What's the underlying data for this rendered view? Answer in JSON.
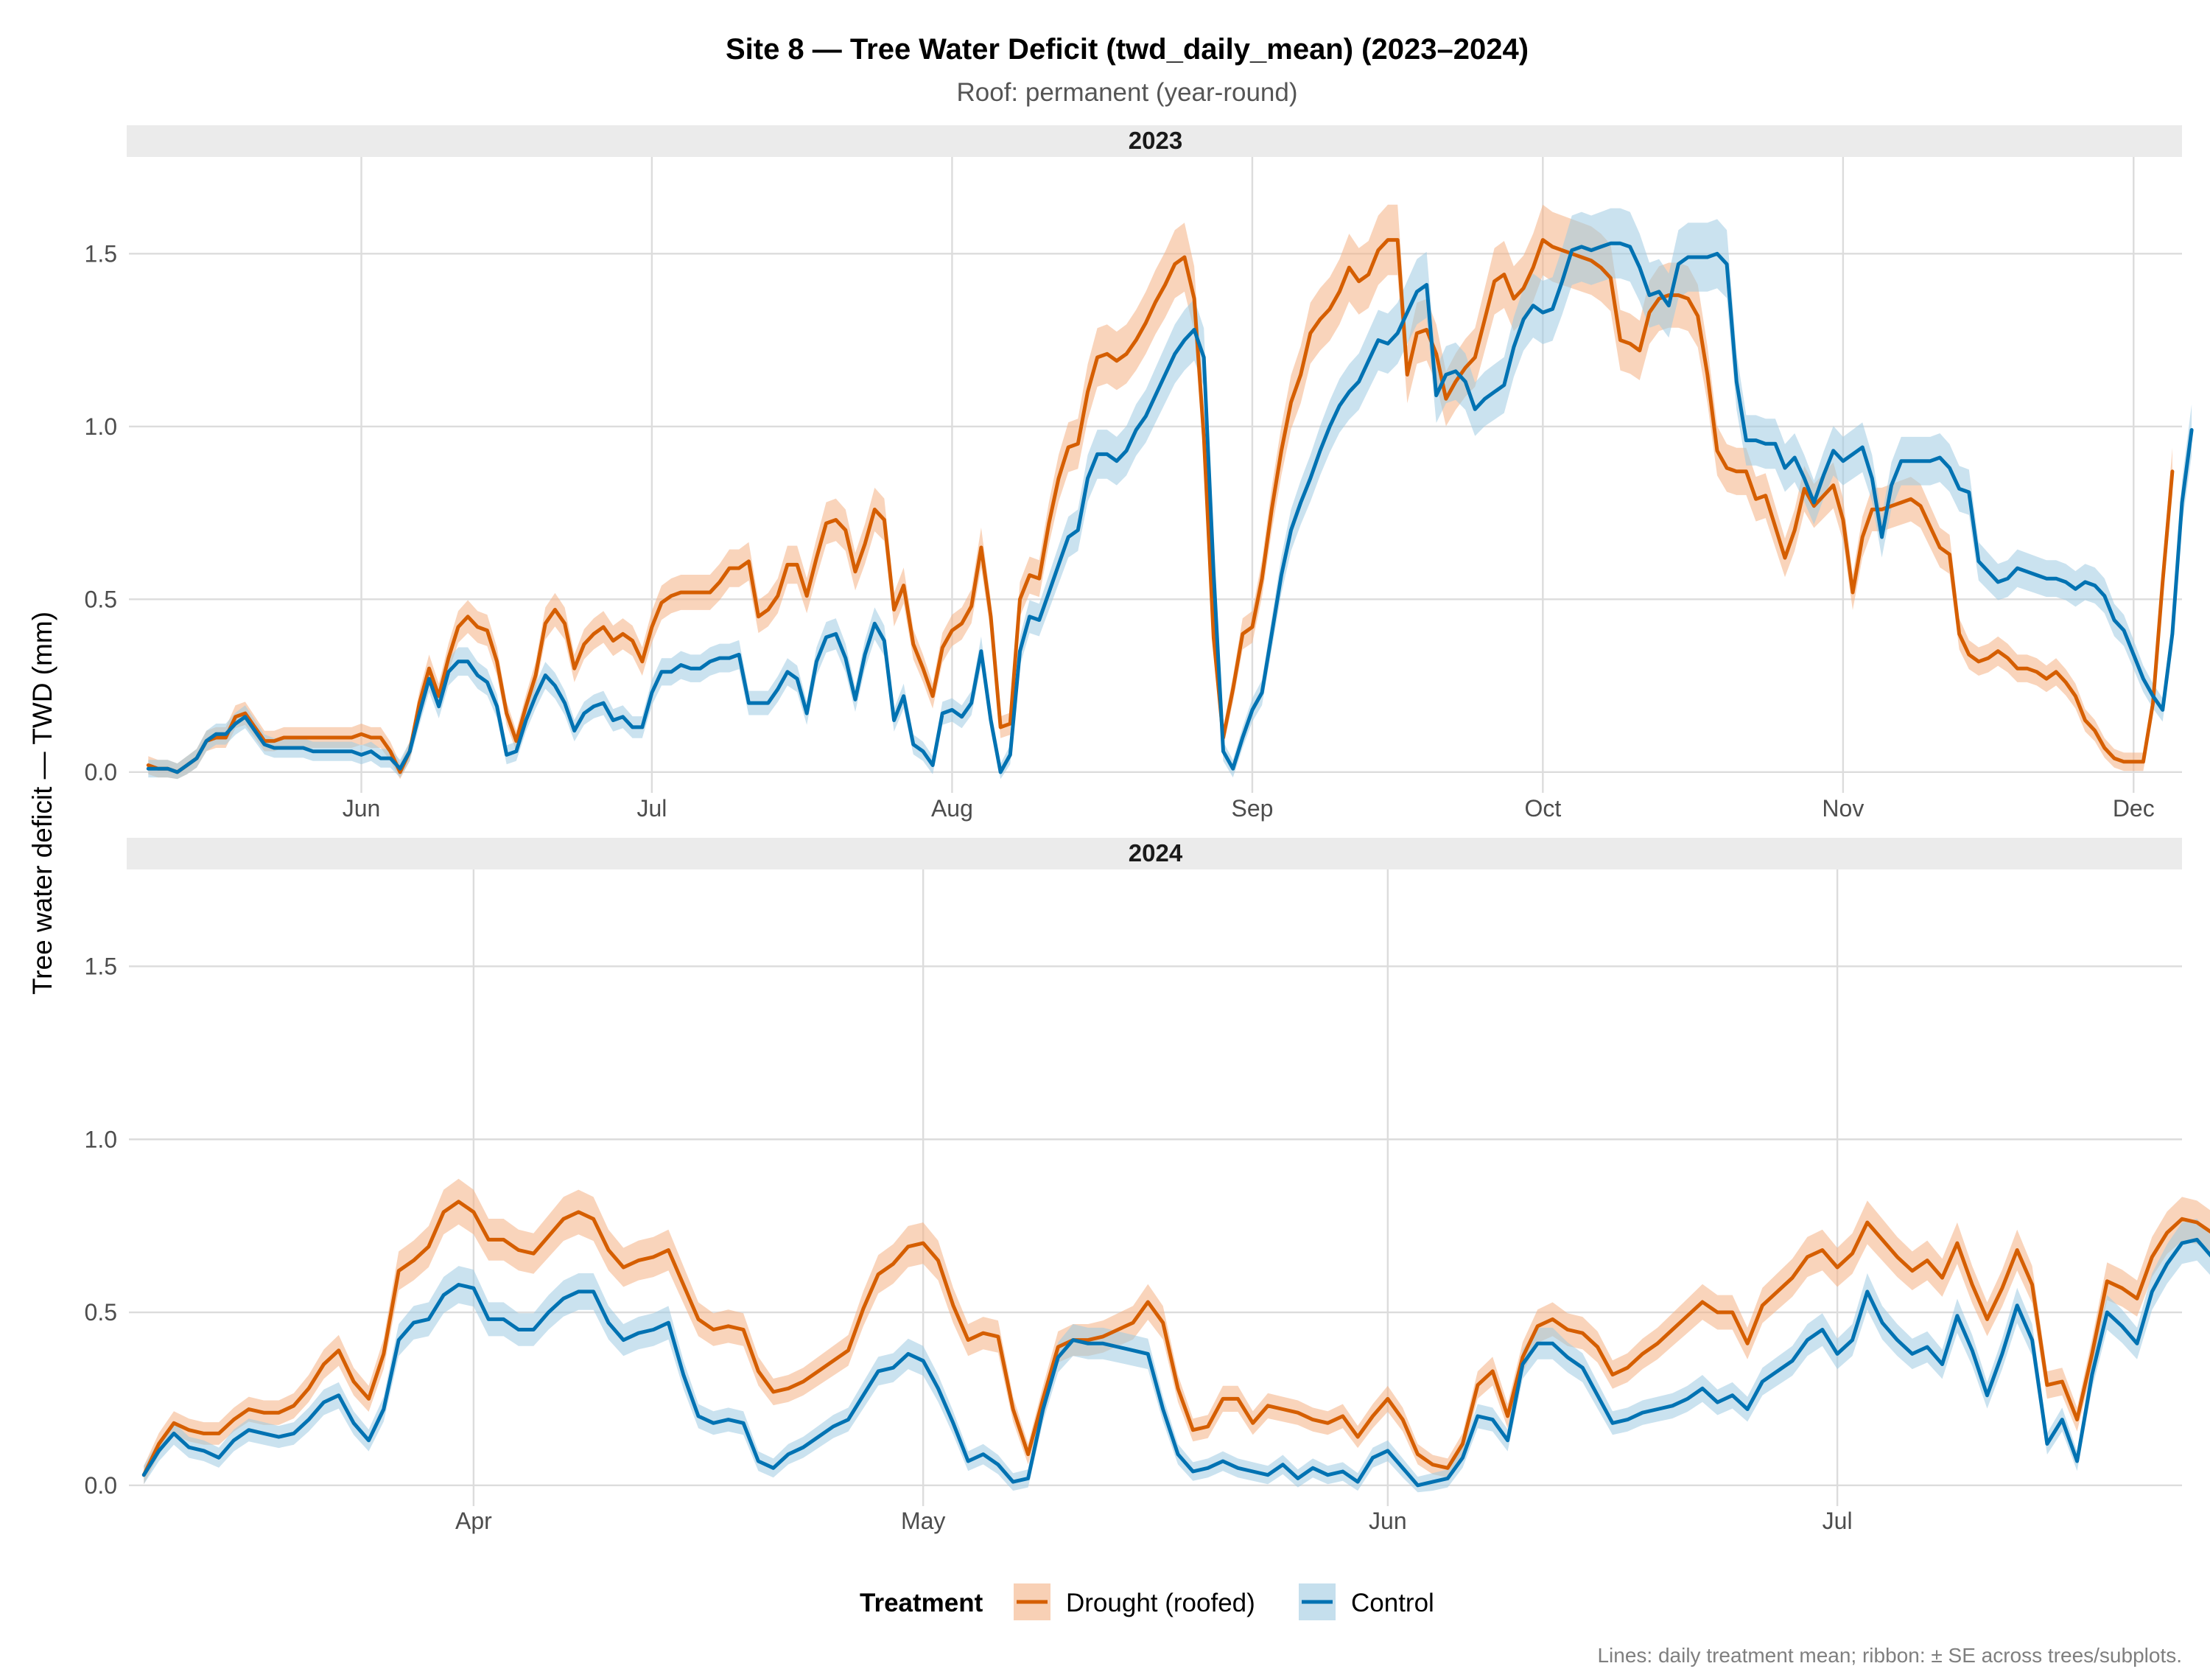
{
  "chart_data": {
    "type": "line",
    "title": "Site 8 — Tree Water Deficit (twd_daily_mean) (2023–2024)",
    "subtitle": "Roof: permanent (year-round)",
    "ylabel": "Tree water deficit — TWD (mm)",
    "xlabel": "",
    "ylim": [
      -0.06,
      1.78
    ],
    "y_ticks": [
      0.0,
      0.5,
      1.0,
      1.5
    ],
    "y_tick_labels": [
      "0.0",
      "0.5",
      "1.0",
      "1.5"
    ],
    "grid": true,
    "legend": {
      "title": "Treatment",
      "position": "bottom",
      "entries": [
        {
          "label": "Drought (roofed)",
          "color": "#D55E00",
          "fill": "#F4B183"
        },
        {
          "label": "Control",
          "color": "#0072B2",
          "fill": "#9ECAE1"
        }
      ]
    },
    "caption": "Lines: daily treatment mean; ribbon: ± SE across trees/subplots.",
    "panels": [
      {
        "label": "2023",
        "xlim": [
          "2023-05-08",
          "2023-12-06"
        ],
        "x_ticks": [
          "2023-06-01",
          "2023-07-01",
          "2023-08-01",
          "2023-09-01",
          "2023-10-01",
          "2023-11-01",
          "2023-12-01"
        ],
        "x_tick_labels": [
          "Jun",
          "Jul",
          "Aug",
          "Sep",
          "Oct",
          "Nov",
          "Dec"
        ],
        "x_start": "2023-05-10",
        "series": [
          {
            "name": "Drought (roofed)",
            "color": "#D55E00",
            "ribbon": "#F4B183",
            "y": [
              0.02,
              0.01,
              0.01,
              0.0,
              0.02,
              0.04,
              0.09,
              0.1,
              0.1,
              0.16,
              0.17,
              0.13,
              0.09,
              0.09,
              0.1,
              0.1,
              0.1,
              0.1,
              0.1,
              0.1,
              0.1,
              0.1,
              0.11,
              0.1,
              0.1,
              0.06,
              0.0,
              0.06,
              0.2,
              0.3,
              0.22,
              0.33,
              0.42,
              0.45,
              0.42,
              0.41,
              0.32,
              0.17,
              0.09,
              0.19,
              0.28,
              0.43,
              0.47,
              0.43,
              0.3,
              0.37,
              0.4,
              0.42,
              0.38,
              0.4,
              0.38,
              0.32,
              0.42,
              0.49,
              0.51,
              0.52,
              0.52,
              0.52,
              0.52,
              0.55,
              0.59,
              0.59,
              0.61,
              0.45,
              0.47,
              0.51,
              0.6,
              0.6,
              0.51,
              0.62,
              0.72,
              0.73,
              0.7,
              0.58,
              0.66,
              0.76,
              0.73,
              0.47,
              0.54,
              0.37,
              0.3,
              0.22,
              0.36,
              0.41,
              0.43,
              0.48,
              0.65,
              0.45,
              0.13,
              0.14,
              0.5,
              0.57,
              0.56,
              0.72,
              0.85,
              0.94,
              0.95,
              1.1,
              1.2,
              1.21,
              1.19,
              1.21,
              1.25,
              1.3,
              1.36,
              1.41,
              1.47,
              1.49,
              1.37,
              0.97,
              0.39,
              0.1,
              0.24,
              0.4,
              0.42,
              0.56,
              0.76,
              0.93,
              1.07,
              1.15,
              1.27,
              1.31,
              1.34,
              1.39,
              1.46,
              1.42,
              1.44,
              1.51,
              1.54,
              1.54,
              1.15,
              1.27,
              1.28,
              1.21,
              1.08,
              1.13,
              1.17,
              1.2,
              1.31,
              1.42,
              1.44,
              1.37,
              1.4,
              1.46,
              1.54,
              1.52,
              1.51,
              1.5,
              1.49,
              1.48,
              1.46,
              1.43,
              1.25,
              1.24,
              1.22,
              1.33,
              1.37,
              1.38,
              1.38,
              1.37,
              1.32,
              1.15,
              0.93,
              0.88,
              0.87,
              0.87,
              0.79,
              0.8,
              0.71,
              0.62,
              0.7,
              0.82,
              0.77,
              0.8,
              0.83,
              0.73,
              0.52,
              0.68,
              0.76,
              0.76,
              0.77,
              0.78,
              0.79,
              0.77,
              0.71,
              0.65,
              0.63,
              0.4,
              0.34,
              0.32,
              0.33,
              0.35,
              0.33,
              0.3,
              0.3,
              0.29,
              0.27,
              0.29,
              0.26,
              0.22,
              0.15,
              0.12,
              0.07,
              0.04,
              0.03,
              0.03,
              0.03,
              0.2,
              0.55,
              0.87
            ]
          },
          {
            "name": "Control",
            "color": "#0072B2",
            "ribbon": "#9ECAE1",
            "y": [
              0.01,
              0.01,
              0.01,
              0.0,
              0.02,
              0.04,
              0.09,
              0.11,
              0.11,
              0.14,
              0.16,
              0.12,
              0.08,
              0.07,
              0.07,
              0.07,
              0.07,
              0.06,
              0.06,
              0.06,
              0.06,
              0.06,
              0.05,
              0.06,
              0.04,
              0.04,
              0.01,
              0.06,
              0.17,
              0.27,
              0.19,
              0.29,
              0.32,
              0.32,
              0.28,
              0.26,
              0.19,
              0.05,
              0.06,
              0.15,
              0.22,
              0.28,
              0.25,
              0.2,
              0.12,
              0.17,
              0.19,
              0.2,
              0.15,
              0.16,
              0.13,
              0.13,
              0.23,
              0.29,
              0.29,
              0.31,
              0.3,
              0.3,
              0.32,
              0.33,
              0.33,
              0.34,
              0.2,
              0.2,
              0.2,
              0.24,
              0.29,
              0.27,
              0.17,
              0.32,
              0.39,
              0.4,
              0.33,
              0.21,
              0.34,
              0.43,
              0.38,
              0.15,
              0.22,
              0.08,
              0.06,
              0.02,
              0.17,
              0.18,
              0.16,
              0.2,
              0.35,
              0.15,
              0.0,
              0.05,
              0.35,
              0.45,
              0.44,
              0.52,
              0.6,
              0.68,
              0.7,
              0.85,
              0.92,
              0.92,
              0.9,
              0.93,
              0.99,
              1.03,
              1.09,
              1.15,
              1.21,
              1.25,
              1.28,
              1.2,
              0.58,
              0.06,
              0.01,
              0.1,
              0.18,
              0.23,
              0.4,
              0.57,
              0.7,
              0.78,
              0.85,
              0.93,
              1.0,
              1.06,
              1.1,
              1.13,
              1.19,
              1.25,
              1.24,
              1.27,
              1.33,
              1.39,
              1.41,
              1.09,
              1.15,
              1.16,
              1.13,
              1.05,
              1.08,
              1.1,
              1.12,
              1.23,
              1.31,
              1.35,
              1.33,
              1.34,
              1.42,
              1.51,
              1.52,
              1.51,
              1.52,
              1.53,
              1.53,
              1.52,
              1.46,
              1.38,
              1.39,
              1.35,
              1.47,
              1.49,
              1.49,
              1.49,
              1.5,
              1.47,
              1.13,
              0.96,
              0.96,
              0.95,
              0.95,
              0.88,
              0.91,
              0.85,
              0.78,
              0.86,
              0.93,
              0.9,
              0.92,
              0.94,
              0.85,
              0.68,
              0.83,
              0.9,
              0.9,
              0.9,
              0.9,
              0.91,
              0.88,
              0.82,
              0.81,
              0.61,
              0.58,
              0.55,
              0.56,
              0.59,
              0.58,
              0.57,
              0.56,
              0.56,
              0.55,
              0.53,
              0.55,
              0.54,
              0.51,
              0.44,
              0.41,
              0.34,
              0.27,
              0.22,
              0.18,
              0.4,
              0.78,
              0.99
            ]
          }
        ]
      },
      {
        "label": "2024",
        "xlim": [
          "2024-03-09",
          "2024-07-24"
        ],
        "x_ticks": [
          "2024-04-01",
          "2024-05-01",
          "2024-06-01",
          "2024-07-01"
        ],
        "x_tick_labels": [
          "Apr",
          "May",
          "Jun",
          "Jul"
        ],
        "x_start": "2024-03-10",
        "series": [
          {
            "name": "Drought (roofed)",
            "color": "#D55E00",
            "ribbon": "#F4B183",
            "y": [
              0.03,
              0.12,
              0.18,
              0.16,
              0.15,
              0.15,
              0.19,
              0.22,
              0.21,
              0.21,
              0.23,
              0.28,
              0.35,
              0.39,
              0.3,
              0.25,
              0.38,
              0.62,
              0.65,
              0.69,
              0.79,
              0.82,
              0.79,
              0.71,
              0.71,
              0.68,
              0.67,
              0.72,
              0.77,
              0.79,
              0.77,
              0.68,
              0.63,
              0.65,
              0.66,
              0.68,
              0.58,
              0.48,
              0.45,
              0.46,
              0.45,
              0.33,
              0.27,
              0.28,
              0.3,
              0.33,
              0.36,
              0.39,
              0.51,
              0.61,
              0.64,
              0.69,
              0.7,
              0.65,
              0.52,
              0.42,
              0.44,
              0.43,
              0.22,
              0.09,
              0.25,
              0.4,
              0.42,
              0.42,
              0.43,
              0.45,
              0.47,
              0.53,
              0.47,
              0.28,
              0.16,
              0.17,
              0.25,
              0.25,
              0.18,
              0.23,
              0.22,
              0.21,
              0.19,
              0.18,
              0.2,
              0.14,
              0.2,
              0.25,
              0.19,
              0.09,
              0.06,
              0.05,
              0.12,
              0.29,
              0.33,
              0.2,
              0.37,
              0.46,
              0.48,
              0.45,
              0.44,
              0.4,
              0.32,
              0.34,
              0.38,
              0.41,
              0.45,
              0.49,
              0.53,
              0.5,
              0.5,
              0.41,
              0.52,
              0.56,
              0.6,
              0.66,
              0.68,
              0.63,
              0.67,
              0.76,
              0.71,
              0.66,
              0.62,
              0.65,
              0.6,
              0.7,
              0.58,
              0.48,
              0.57,
              0.68,
              0.58,
              0.29,
              0.3,
              0.19,
              0.38,
              0.59,
              0.57,
              0.54,
              0.66,
              0.73,
              0.77,
              0.76,
              0.73
            ]
          },
          {
            "name": "Control",
            "color": "#0072B2",
            "ribbon": "#9ECAE1",
            "y": [
              0.03,
              0.1,
              0.15,
              0.11,
              0.1,
              0.08,
              0.13,
              0.16,
              0.15,
              0.14,
              0.15,
              0.19,
              0.24,
              0.26,
              0.18,
              0.13,
              0.22,
              0.42,
              0.47,
              0.48,
              0.55,
              0.58,
              0.57,
              0.48,
              0.48,
              0.45,
              0.45,
              0.5,
              0.54,
              0.56,
              0.56,
              0.47,
              0.42,
              0.44,
              0.45,
              0.47,
              0.32,
              0.2,
              0.18,
              0.19,
              0.18,
              0.07,
              0.05,
              0.09,
              0.11,
              0.14,
              0.17,
              0.19,
              0.26,
              0.33,
              0.34,
              0.38,
              0.36,
              0.28,
              0.18,
              0.07,
              0.09,
              0.06,
              0.01,
              0.02,
              0.22,
              0.37,
              0.42,
              0.41,
              0.41,
              0.4,
              0.39,
              0.38,
              0.22,
              0.09,
              0.04,
              0.05,
              0.07,
              0.05,
              0.04,
              0.03,
              0.06,
              0.02,
              0.05,
              0.03,
              0.04,
              0.01,
              0.08,
              0.1,
              0.05,
              0.0,
              0.01,
              0.02,
              0.08,
              0.2,
              0.19,
              0.13,
              0.35,
              0.41,
              0.41,
              0.37,
              0.34,
              0.26,
              0.18,
              0.19,
              0.21,
              0.22,
              0.23,
              0.25,
              0.28,
              0.24,
              0.26,
              0.22,
              0.3,
              0.33,
              0.36,
              0.42,
              0.45,
              0.38,
              0.42,
              0.56,
              0.47,
              0.42,
              0.38,
              0.4,
              0.35,
              0.49,
              0.39,
              0.26,
              0.38,
              0.52,
              0.42,
              0.12,
              0.19,
              0.07,
              0.32,
              0.5,
              0.46,
              0.41,
              0.56,
              0.64,
              0.7,
              0.71,
              0.66
            ]
          }
        ]
      }
    ]
  }
}
